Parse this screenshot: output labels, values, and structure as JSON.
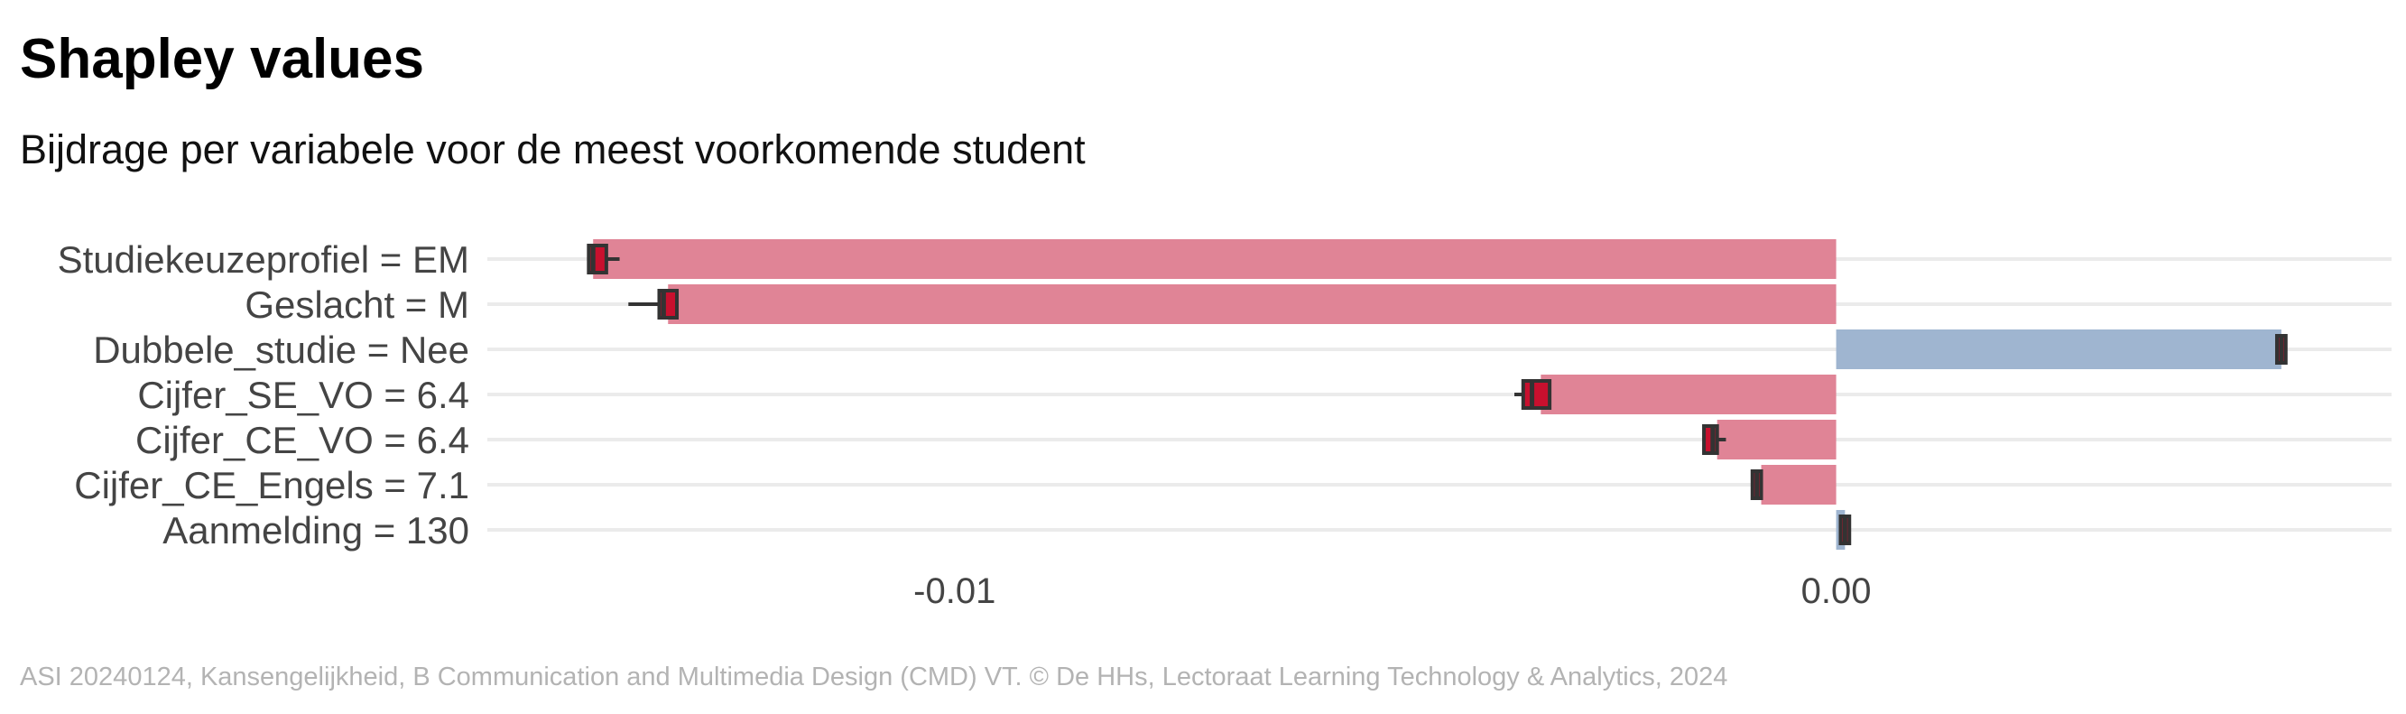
{
  "header": {
    "title": "Shapley values",
    "subtitle": "Bijdrage per variabele voor de meest voorkomende student"
  },
  "footer": {
    "caption": "ASI 20240124, Kansengelijkheid, B Communication and Multimedia Design (CMD) VT. © De HHs, Lectoraat Learning Technology & Analytics, 2024"
  },
  "colors": {
    "negative_bar": "#e08496",
    "positive_bar": "#9fb5d0",
    "box_fill": "#c8102e",
    "box_stroke": "#333333",
    "gridline": "#ebebeb",
    "label_text": "#444444"
  },
  "chart_data": {
    "type": "bar",
    "orientation": "horizontal",
    "title": "Shapley values",
    "subtitle": "Bijdrage per variabele voor de meest voorkomende student",
    "xlim": [
      -0.0153,
      0.0063
    ],
    "x_ticks": [
      {
        "value": -0.01,
        "label": "-0.01"
      },
      {
        "value": 0.0,
        "label": "0.00"
      }
    ],
    "grid": "horizontal gridlines at each category",
    "legend": "none",
    "categories": [
      "Studiekeuzeprofiel = EM",
      "Geslacht = M",
      "Dubbele_studie = Nee",
      "Cijfer_SE_VO = 6.4",
      "Cijfer_CE_VO = 6.4",
      "Cijfer_CE_Engels = 7.1",
      "Aanmelding = 130"
    ],
    "values": [
      -0.0141,
      -0.01325,
      0.00505,
      -0.00335,
      -0.00135,
      -0.00085,
      0.0001
    ],
    "boxplots": [
      {
        "q1": -0.01415,
        "median": -0.0141,
        "q3": -0.01395,
        "min": -0.01415,
        "max": -0.0138
      },
      {
        "q1": -0.01335,
        "median": -0.0133,
        "q3": -0.01315,
        "min": -0.0137,
        "max": -0.01315
      },
      {
        "q1": 0.005,
        "median": 0.00505,
        "q3": 0.0051,
        "min": 0.005,
        "max": 0.0051
      },
      {
        "q1": -0.00355,
        "median": -0.00345,
        "q3": -0.00325,
        "min": -0.00365,
        "max": -0.00325
      },
      {
        "q1": -0.0015,
        "median": -0.0014,
        "q3": -0.00135,
        "min": -0.0015,
        "max": -0.00125
      },
      {
        "q1": -0.00095,
        "median": -0.0009,
        "q3": -0.00085,
        "min": -0.00095,
        "max": -0.00085
      },
      {
        "q1": 5e-05,
        "median": 0.0001,
        "q3": 0.00015,
        "min": 5e-05,
        "max": 0.00015
      }
    ]
  }
}
